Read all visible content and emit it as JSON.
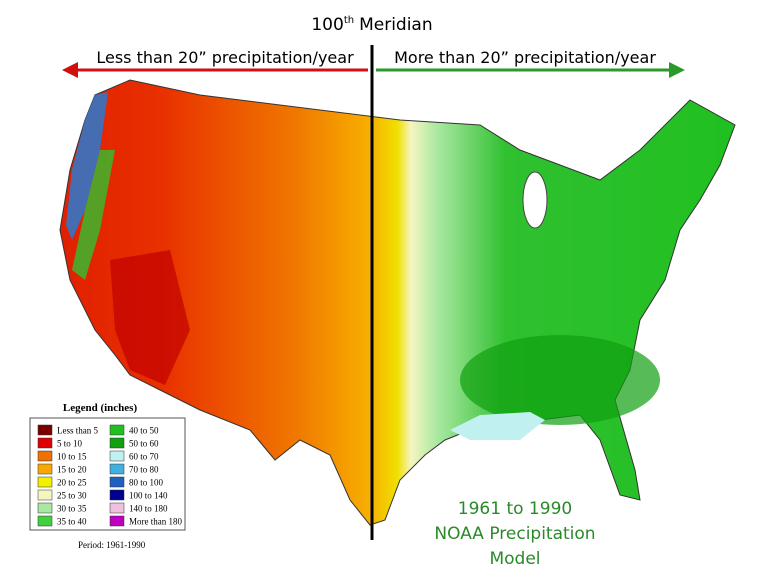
{
  "header": {
    "title": {
      "number": "100",
      "superscript": "th",
      "text": "Meridian"
    },
    "left_arrow": "Less than 20” precipitation/year",
    "right_arrow": "More than 20” precipitation/year"
  },
  "legend": {
    "title": "Legend (inches)",
    "items": [
      {
        "label": "Less than 5",
        "color": "#7a0000"
      },
      {
        "label": "5 to 10",
        "color": "#e00000"
      },
      {
        "label": "10 to 15",
        "color": "#f07000"
      },
      {
        "label": "15 to 20",
        "color": "#f8a800"
      },
      {
        "label": "20 to 25",
        "color": "#f0f000"
      },
      {
        "label": "25 to 30",
        "color": "#f5f5c0"
      },
      {
        "label": "30 to 35",
        "color": "#a8e8a0"
      },
      {
        "label": "35 to 40",
        "color": "#40d040"
      },
      {
        "label": "40 to 50",
        "color": "#20c020"
      },
      {
        "label": "50 to 60",
        "color": "#10a010"
      },
      {
        "label": "60 to 70",
        "color": "#c0f0f0"
      },
      {
        "label": "70 to 80",
        "color": "#40b0e0"
      },
      {
        "label": "80 to 100",
        "color": "#2060c0"
      },
      {
        "label": "100 to 140",
        "color": "#000090"
      },
      {
        "label": "140 to 180",
        "color": "#f0c0e0"
      },
      {
        "label": "More than 180",
        "color": "#c000c0"
      }
    ],
    "period": "Period: 1961-1990"
  },
  "caption": [
    "1961 to 1990",
    "NOAA Precipitation",
    "Model"
  ]
}
